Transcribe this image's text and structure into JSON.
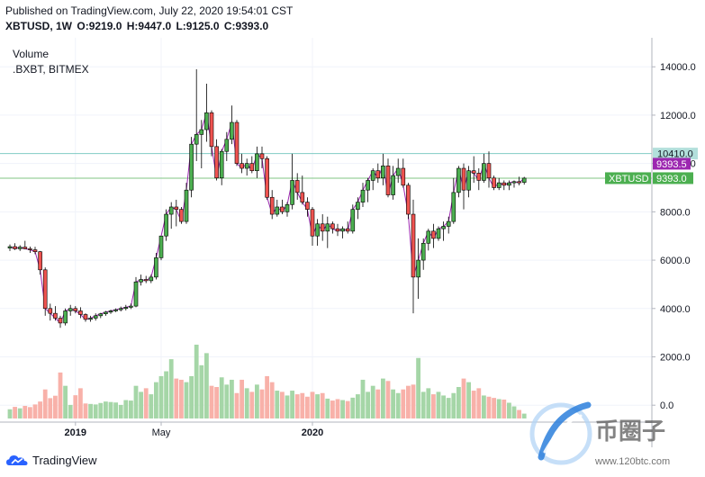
{
  "header": {
    "published": "Published on TradingView.com, July 22, 2020 19:54:01 CST",
    "symbol": "XBTUSD, 1W",
    "open": "O:9219.0",
    "high": "H:9447.0",
    "low": "L:9125.0",
    "close": "C:9393.0"
  },
  "legend": {
    "volume": "Volume",
    "index": ".BXBT, BITMEX"
  },
  "footer": {
    "brand": "TradingView"
  },
  "watermark": {
    "brand": "币圈子",
    "url": "www.120btc.com"
  },
  "colors": {
    "up": "#4caf50",
    "down": "#ef5350",
    "up_volume": "#a5d6a7",
    "down_volume": "#f8b1a9",
    "index_line": "#9c27b0",
    "level_line": "#4caf50",
    "level_tag_bg": "#4caf50",
    "index_tag_bg": "#9c27b0",
    "resistance_tag_bg": "#b2dfdb"
  },
  "chart_data": {
    "type": "candlestick",
    "title": "",
    "y_axis": {
      "range": [
        -700,
        15200
      ],
      "ticks": [
        0,
        2000,
        4000,
        6000,
        8000,
        10000,
        12000,
        14000
      ],
      "tick_labels": [
        "0.0",
        "2000.0",
        "4000.0",
        "6000.0",
        "8000.0",
        "10000.0",
        "12000.0",
        "14000.0"
      ]
    },
    "x_axis": {
      "tick_labels": [
        "2019",
        "May",
        "2020"
      ],
      "tick_candle_index": [
        13,
        30,
        60
      ]
    },
    "price_labels": [
      {
        "value": 10410.0,
        "text": "10410.0"
      },
      {
        "value": 9393.5,
        "text": "9393.5"
      },
      {
        "value": 9393.0,
        "text": "9393.0",
        "symbol": "XBTUSD"
      }
    ],
    "candles": [
      [
        6500,
        6650,
        6380,
        6560
      ],
      [
        6560,
        6700,
        6420,
        6470
      ],
      [
        6470,
        6620,
        6380,
        6540
      ],
      [
        6540,
        6800,
        6450,
        6470
      ],
      [
        6470,
        6560,
        6300,
        6430
      ],
      [
        6430,
        6550,
        6250,
        6350
      ],
      [
        6350,
        6380,
        5400,
        5600
      ],
      [
        5600,
        5700,
        3700,
        4000
      ],
      [
        4000,
        4200,
        3500,
        3800
      ],
      [
        3800,
        4100,
        3500,
        3600
      ],
      [
        3600,
        3700,
        3200,
        3400
      ],
      [
        3400,
        4000,
        3300,
        3900
      ],
      [
        3900,
        4150,
        3700,
        4000
      ],
      [
        4000,
        4100,
        3800,
        3900
      ],
      [
        3900,
        4050,
        3600,
        3750
      ],
      [
        3750,
        3800,
        3450,
        3550
      ],
      [
        3550,
        3700,
        3450,
        3600
      ],
      [
        3600,
        3800,
        3500,
        3700
      ],
      [
        3700,
        3820,
        3600,
        3780
      ],
      [
        3780,
        3900,
        3700,
        3850
      ],
      [
        3850,
        3950,
        3780,
        3900
      ],
      [
        3900,
        4000,
        3850,
        3950
      ],
      [
        3950,
        4080,
        3880,
        4000
      ],
      [
        4000,
        4150,
        3920,
        4050
      ],
      [
        4050,
        4200,
        3980,
        4100
      ],
      [
        4100,
        5300,
        4050,
        5100
      ],
      [
        5100,
        5400,
        4950,
        5200
      ],
      [
        5200,
        5350,
        5050,
        5150
      ],
      [
        5150,
        5400,
        5050,
        5300
      ],
      [
        5300,
        6300,
        5200,
        6100
      ],
      [
        6100,
        7000,
        6000,
        7000
      ],
      [
        7000,
        8100,
        6800,
        7900
      ],
      [
        7900,
        8400,
        7300,
        8200
      ],
      [
        8200,
        8500,
        7400,
        8100
      ],
      [
        8100,
        8200,
        7500,
        7600
      ],
      [
        7600,
        9200,
        7500,
        8900
      ],
      [
        8900,
        11100,
        8600,
        10800
      ],
      [
        10800,
        13900,
        10100,
        11200
      ],
      [
        11200,
        11800,
        9800,
        11400
      ],
      [
        11400,
        13300,
        10900,
        12100
      ],
      [
        12100,
        12200,
        10300,
        10700
      ],
      [
        10700,
        11000,
        9300,
        9400
      ],
      [
        9400,
        10600,
        9100,
        10500
      ],
      [
        10500,
        11300,
        10100,
        11000
      ],
      [
        11000,
        12400,
        10800,
        11700
      ],
      [
        11700,
        11800,
        9900,
        10000
      ],
      [
        10000,
        10400,
        9600,
        9800
      ],
      [
        9800,
        10200,
        9500,
        10000
      ],
      [
        10000,
        10300,
        9600,
        9700
      ],
      [
        9700,
        10700,
        9400,
        10400
      ],
      [
        10400,
        10700,
        9800,
        10200
      ],
      [
        10200,
        10300,
        8500,
        8600
      ],
      [
        8600,
        8900,
        7700,
        7900
      ],
      [
        7900,
        8500,
        7800,
        8200
      ],
      [
        8200,
        8500,
        7900,
        8000
      ],
      [
        8000,
        8400,
        7800,
        8300
      ],
      [
        8300,
        10400,
        8100,
        9300
      ],
      [
        9300,
        9600,
        8500,
        8800
      ],
      [
        8800,
        9500,
        8300,
        8400
      ],
      [
        8400,
        8600,
        7800,
        8100
      ],
      [
        8100,
        8200,
        6600,
        7000
      ],
      [
        7000,
        7700,
        6600,
        7500
      ],
      [
        7500,
        7900,
        6800,
        7200
      ],
      [
        7200,
        7800,
        6500,
        7500
      ],
      [
        7500,
        7600,
        7100,
        7300
      ],
      [
        7300,
        7500,
        7000,
        7200
      ],
      [
        7200,
        7400,
        6900,
        7300
      ],
      [
        7300,
        7600,
        7100,
        7200
      ],
      [
        7200,
        8300,
        7100,
        8100
      ],
      [
        8100,
        8600,
        7700,
        8400
      ],
      [
        8400,
        9200,
        8200,
        8900
      ],
      [
        8900,
        9400,
        8400,
        9300
      ],
      [
        9300,
        9800,
        8900,
        9700
      ],
      [
        9700,
        10000,
        9200,
        9400
      ],
      [
        9400,
        10400,
        9100,
        9900
      ],
      [
        9900,
        10200,
        8600,
        8700
      ],
      [
        8700,
        9900,
        8500,
        9500
      ],
      [
        9500,
        10200,
        9200,
        9800
      ],
      [
        9800,
        10200,
        9000,
        9100
      ],
      [
        9100,
        9200,
        7700,
        7900
      ],
      [
        7900,
        8500,
        3800,
        5300
      ],
      [
        5300,
        6900,
        4400,
        6000
      ],
      [
        6000,
        6900,
        5600,
        6700
      ],
      [
        6700,
        7300,
        6400,
        7200
      ],
      [
        7200,
        7500,
        6500,
        6900
      ],
      [
        6900,
        7400,
        6800,
        7300
      ],
      [
        7300,
        7600,
        6800,
        7400
      ],
      [
        7400,
        7800,
        7100,
        7600
      ],
      [
        7600,
        9400,
        7500,
        8800
      ],
      [
        8800,
        9900,
        8600,
        9800
      ],
      [
        9800,
        10000,
        8100,
        8900
      ],
      [
        8900,
        9900,
        8600,
        9700
      ],
      [
        9700,
        10300,
        9200,
        9600
      ],
      [
        9600,
        9800,
        8900,
        9300
      ],
      [
        9300,
        10400,
        9200,
        10000
      ],
      [
        10000,
        10500,
        9000,
        9400
      ],
      [
        9400,
        9500,
        8900,
        9000
      ],
      [
        9000,
        9400,
        8900,
        9200
      ],
      [
        9200,
        9300,
        8900,
        9100
      ],
      [
        9100,
        9300,
        8900,
        9200
      ],
      [
        9200,
        9300,
        9000,
        9250
      ],
      [
        9250,
        9450,
        9100,
        9200
      ],
      [
        9219,
        9447,
        9125,
        9393
      ]
    ],
    "volumes": [
      380,
      480,
      420,
      520,
      470,
      580,
      700,
      1200,
      840,
      940,
      1900,
      1350,
      560,
      960,
      1250,
      620,
      600,
      580,
      640,
      700,
      680,
      660,
      560,
      760,
      740,
      1350,
      1100,
      1250,
      1000,
      1500,
      1750,
      1950,
      2450,
      1650,
      1600,
      1500,
      1750,
      3050,
      2200,
      2700,
      1350,
      1300,
      1700,
      1400,
      1600,
      1050,
      1600,
      1250,
      1100,
      1400,
      1200,
      1750,
      1500,
      1150,
      1100,
      950,
      1150,
      1000,
      1050,
      900,
      1100,
      1000,
      1050,
      820,
      740,
      800,
      760,
      720,
      860,
      1000,
      1600,
      1100,
      1350,
      1200,
      1650,
      1550,
      1200,
      1050,
      1200,
      1350,
      1400,
      2500,
      1100,
      1250,
      1000,
      1100,
      950,
      850,
      1050,
      1300,
      1650,
      1500,
      1150,
      1250,
      950,
      900,
      850,
      800,
      780,
      650,
      500,
      350,
      200
    ]
  }
}
